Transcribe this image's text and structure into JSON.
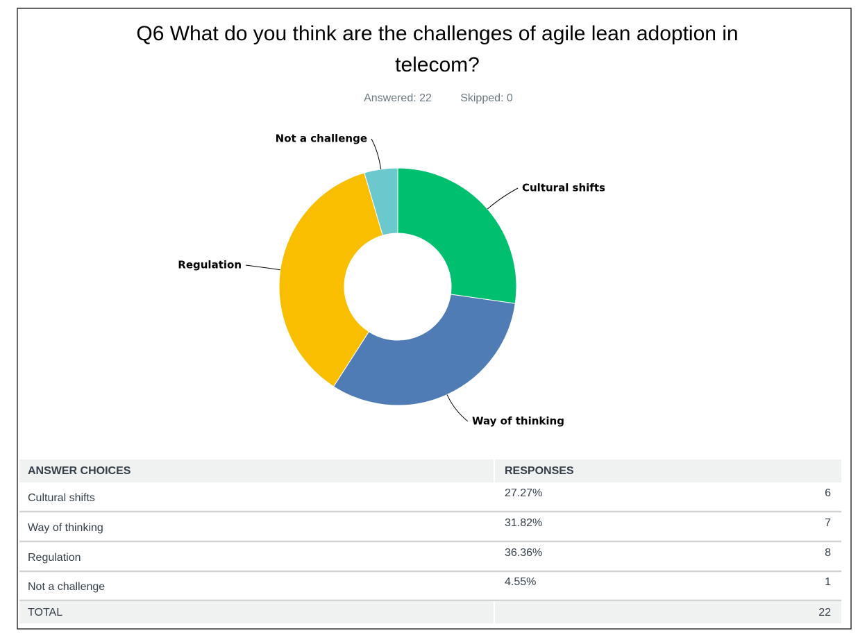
{
  "chart_data": {
    "type": "pie",
    "donut": true,
    "title": [
      "Q6 What do you think are the challenges of agile lean adoption in",
      "telecom?"
    ],
    "subtitle": [
      "Answered: 22",
      "Skipped: 0"
    ],
    "categories": [
      "Cultural shifts",
      "Way of thinking",
      "Regulation",
      "Not a challenge"
    ],
    "values": [
      27.27,
      31.82,
      36.36,
      4.55
    ],
    "colors": [
      "#00bf6f",
      "#507cb6",
      "#f9be00",
      "#6bc8cd"
    ]
  },
  "table": {
    "columns": [
      "ANSWER CHOICES",
      "RESPONSES"
    ],
    "rows": [
      {
        "choice": "Cultural shifts",
        "percent": "27.27%",
        "count": 6
      },
      {
        "choice": "Way of thinking",
        "percent": "31.82%",
        "count": 7
      },
      {
        "choice": "Regulation",
        "percent": "36.36%",
        "count": 8
      },
      {
        "choice": "Not a challenge",
        "percent": "4.55%",
        "count": 1
      }
    ],
    "total": {
      "label": "TOTAL",
      "count": 22
    }
  }
}
